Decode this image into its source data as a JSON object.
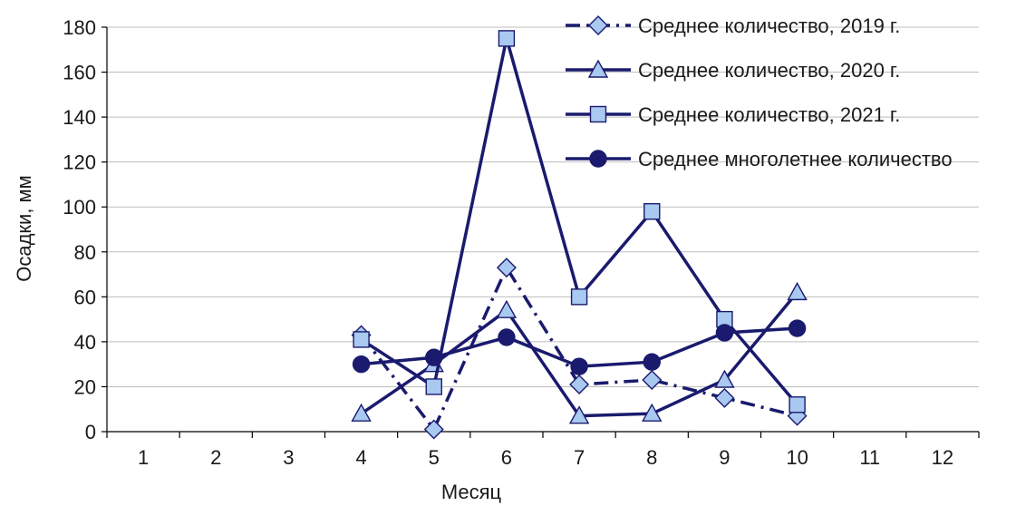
{
  "chart_data": {
    "type": "line",
    "title": "",
    "xlabel": "Месяц",
    "ylabel": "Осадки, мм",
    "x": [
      1,
      2,
      3,
      4,
      5,
      6,
      7,
      8,
      9,
      10,
      11,
      12
    ],
    "xticks": [
      "1",
      "2",
      "3",
      "4",
      "5",
      "6",
      "7",
      "8",
      "9",
      "10",
      "11",
      "12"
    ],
    "ylim": [
      0,
      180
    ],
    "yticks": [
      "0",
      "20",
      "40",
      "60",
      "80",
      "100",
      "120",
      "140",
      "160",
      "180"
    ],
    "grid": true,
    "legend_position": "top-right",
    "series": [
      {
        "name": "Среднее количество, 2019 г.",
        "marker": "diamond",
        "line_style": "dash-dot",
        "color": "#1a1a6e",
        "marker_fill": "#a9c9f0",
        "points": [
          [
            4,
            43
          ],
          [
            5,
            1
          ],
          [
            6,
            73
          ],
          [
            7,
            21
          ],
          [
            8,
            23
          ],
          [
            9,
            15
          ],
          [
            10,
            7
          ]
        ]
      },
      {
        "name": "Среднее количество, 2020  г.",
        "marker": "triangle",
        "line_style": "solid",
        "color": "#1a1a6e",
        "marker_fill": "#a9c9f0",
        "points": [
          [
            4,
            8
          ],
          [
            5,
            30
          ],
          [
            6,
            54
          ],
          [
            7,
            7
          ],
          [
            8,
            8
          ],
          [
            9,
            23
          ],
          [
            10,
            62
          ]
        ]
      },
      {
        "name": "Среднее количество, 2021 г.",
        "marker": "square",
        "line_style": "solid",
        "color": "#1a1a6e",
        "marker_fill": "#a9c9f0",
        "points": [
          [
            4,
            41
          ],
          [
            5,
            20
          ],
          [
            6,
            175
          ],
          [
            7,
            60
          ],
          [
            8,
            98
          ],
          [
            9,
            50
          ],
          [
            10,
            12
          ]
        ]
      },
      {
        "name": "Среднее многолетнее количество",
        "marker": "circle",
        "line_style": "solid",
        "color": "#1a1a6e",
        "marker_fill": "#1a1a6e",
        "points": [
          [
            4,
            30
          ],
          [
            5,
            33
          ],
          [
            6,
            42
          ],
          [
            7,
            29
          ],
          [
            8,
            31
          ],
          [
            9,
            44
          ],
          [
            10,
            46
          ]
        ]
      }
    ]
  }
}
